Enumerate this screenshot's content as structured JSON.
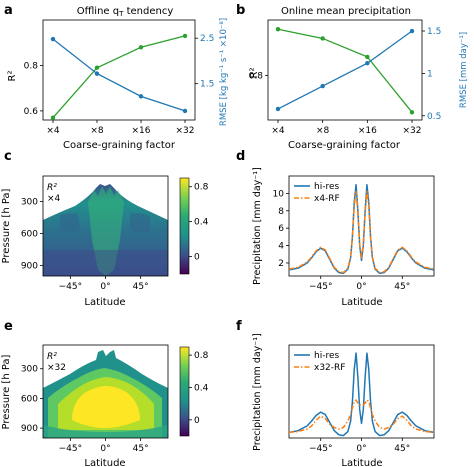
{
  "chart_data": [
    {
      "panel": "a",
      "type": "line",
      "title": "Offline qT tendency",
      "title_main": "Offline q",
      "title_sub": "T",
      "title_tail": " tendency",
      "xlabel": "Coarse-graining factor",
      "ylabel": "R²",
      "y2label": "RMSE [kg kg⁻¹ s⁻¹ ×10⁻⁸]",
      "categories": [
        "×4",
        "×8",
        "×16",
        "×32"
      ],
      "ylim": [
        0.56,
        1.0
      ],
      "yticks": [
        0.6,
        0.8
      ],
      "ytick_labels": [
        "0.6",
        "0.8"
      ],
      "y2lim": [
        0.7,
        2.9
      ],
      "y2ticks": [
        1.5,
        2.5
      ],
      "y2tick_labels": [
        "1.5",
        "2.5"
      ],
      "series": [
        {
          "axis": "left",
          "color": "#2ca02c",
          "values": [
            0.57,
            0.79,
            0.88,
            0.93
          ]
        },
        {
          "axis": "right",
          "color": "#1f77b4",
          "values": [
            2.48,
            1.72,
            1.22,
            0.9
          ]
        }
      ],
      "grid": false,
      "legend": "none"
    },
    {
      "panel": "b",
      "type": "line",
      "title": "Online mean precipitation",
      "xlabel": "Coarse-graining factor",
      "ylabel": "R²",
      "y2label": "RMSE [mm day⁻¹]",
      "categories": [
        "×4",
        "×8",
        "×16",
        "×32"
      ],
      "ylim": [
        0.655,
        0.98
      ],
      "yticks": [
        0.8
      ],
      "ytick_labels": [
        "0.8"
      ],
      "y2lim": [
        0.45,
        1.63
      ],
      "y2ticks": [
        0.5,
        1.0,
        1.5
      ],
      "y2tick_labels": [
        "0.5",
        "1",
        "1.5"
      ],
      "series": [
        {
          "axis": "left",
          "color": "#2ca02c",
          "values": [
            0.95,
            0.92,
            0.86,
            0.68
          ]
        },
        {
          "axis": "right",
          "color": "#1f77b4",
          "values": [
            0.58,
            0.85,
            1.12,
            1.5
          ]
        }
      ],
      "grid": false,
      "legend": "none"
    },
    {
      "panel": "c",
      "type": "heatmap",
      "annotation": "R²",
      "annotation2": "×4",
      "xlabel": "Latitude",
      "ylabel": "Pressure [h Pa]",
      "xlim": [
        -80,
        80
      ],
      "xticks": [
        -45,
        0,
        45
      ],
      "xtick_labels": [
        "−45°",
        "0°",
        "45°"
      ],
      "ylim": [
        1000,
        60
      ],
      "yticks": [
        300,
        600,
        900
      ],
      "ytick_labels": [
        "300",
        "600",
        "900"
      ],
      "colorbar": {
        "range": [
          -0.2,
          0.9
        ],
        "ticks": [
          0,
          0.4,
          0.8
        ],
        "tick_labels": [
          "0",
          "0.4",
          "0.8"
        ]
      },
      "description_values": "R² mostly 0.1–0.5 with noisy values near the tropics"
    },
    {
      "panel": "d",
      "type": "line",
      "xlabel": "Latitude",
      "ylabel": "Precipitation [mm day⁻¹]",
      "xlim": [
        -80,
        80
      ],
      "xticks": [
        -45,
        0,
        45
      ],
      "xtick_labels": [
        "−45°",
        "0°",
        "45°"
      ],
      "ylim": [
        0.5,
        12
      ],
      "yticks": [
        2,
        4,
        6,
        8,
        10
      ],
      "ytick_labels": [
        "2",
        "4",
        "6",
        "8",
        "10"
      ],
      "x": [
        -80,
        -70,
        -60,
        -55,
        -50,
        -45,
        -40,
        -35,
        -30,
        -25,
        -20,
        -15,
        -12,
        -10,
        -8,
        -6,
        -4,
        -2,
        0,
        2,
        4,
        6,
        8,
        10,
        12,
        15,
        20,
        25,
        30,
        35,
        40,
        45,
        50,
        55,
        60,
        70,
        80
      ],
      "series": [
        {
          "name": "hi-res",
          "color": "#1f77b4",
          "style": "solid",
          "values": [
            1.2,
            1.4,
            2.0,
            2.6,
            3.3,
            3.7,
            3.4,
            2.4,
            1.4,
            0.9,
            0.8,
            1.3,
            2.6,
            5.0,
            9.0,
            11.0,
            8.0,
            4.0,
            2.3,
            4.0,
            8.0,
            11.0,
            9.0,
            5.0,
            2.6,
            1.3,
            0.8,
            0.9,
            1.4,
            2.4,
            3.4,
            3.7,
            3.3,
            2.6,
            2.0,
            1.4,
            1.2
          ]
        },
        {
          "name": "x4-RF",
          "color": "#ff7f0e",
          "style": "dashdot",
          "values": [
            1.3,
            1.5,
            2.1,
            2.7,
            3.4,
            3.8,
            3.5,
            2.5,
            1.5,
            1.0,
            0.9,
            1.4,
            2.7,
            5.0,
            8.6,
            10.2,
            7.8,
            4.2,
            2.6,
            4.2,
            7.8,
            10.2,
            8.6,
            5.0,
            2.7,
            1.4,
            0.9,
            1.0,
            1.5,
            2.5,
            3.5,
            3.8,
            3.4,
            2.7,
            2.1,
            1.5,
            1.3
          ]
        }
      ],
      "legend": "top-left",
      "grid": false
    },
    {
      "panel": "e",
      "type": "heatmap",
      "annotation": "R²",
      "annotation2": "×32",
      "xlabel": "Latitude",
      "ylabel": "Pressure [h Pa]",
      "xlim": [
        -80,
        80
      ],
      "xticks": [
        -45,
        0,
        45
      ],
      "xtick_labels": [
        "−45°",
        "0°",
        "45°"
      ],
      "ylim": [
        1000,
        60
      ],
      "yticks": [
        300,
        600,
        900
      ],
      "ytick_labels": [
        "300",
        "600",
        "900"
      ],
      "colorbar": {
        "range": [
          -0.2,
          0.9
        ],
        "ticks": [
          0,
          0.4,
          0.8
        ],
        "tick_labels": [
          "0",
          "0.4",
          "0.8"
        ]
      },
      "description_values": "R² up to ~0.9 in tropical mid troposphere, decreasing toward edges"
    },
    {
      "panel": "f",
      "type": "line",
      "xlabel": "Latitude",
      "ylabel": "Precipitation [mm day⁻¹]",
      "xlim": [
        -80,
        80
      ],
      "xticks": [
        -45,
        0,
        45
      ],
      "xtick_labels": [
        "−45°",
        "0°",
        "45°"
      ],
      "ylim": [
        0.5,
        12
      ],
      "yticks": [],
      "ytick_labels": [],
      "x": [
        -80,
        -70,
        -60,
        -55,
        -50,
        -45,
        -40,
        -35,
        -30,
        -25,
        -20,
        -15,
        -12,
        -10,
        -8,
        -6,
        -4,
        -2,
        0,
        2,
        4,
        6,
        8,
        10,
        12,
        15,
        20,
        25,
        30,
        35,
        40,
        45,
        50,
        55,
        60,
        70,
        80
      ],
      "series": [
        {
          "name": "hi-res",
          "color": "#1f77b4",
          "style": "solid",
          "values": [
            1.2,
            1.4,
            2.0,
            2.6,
            3.3,
            3.7,
            3.4,
            2.4,
            1.4,
            0.9,
            0.8,
            1.3,
            2.6,
            5.0,
            9.0,
            11.0,
            8.0,
            4.0,
            2.3,
            4.0,
            8.0,
            11.0,
            9.0,
            5.0,
            2.6,
            1.3,
            0.8,
            0.9,
            1.4,
            2.4,
            3.4,
            3.7,
            3.3,
            2.6,
            2.0,
            1.4,
            1.2
          ]
        },
        {
          "name": "x32-RF",
          "color": "#ff7f0e",
          "style": "dashdot",
          "values": [
            1.2,
            1.3,
            1.6,
            2.0,
            2.7,
            3.2,
            2.9,
            2.2,
            1.8,
            1.6,
            1.8,
            2.6,
            3.4,
            4.2,
            5.0,
            5.2,
            4.8,
            4.6,
            4.6,
            4.6,
            4.8,
            5.2,
            5.0,
            4.2,
            3.4,
            2.6,
            1.8,
            1.6,
            1.8,
            2.2,
            2.9,
            3.2,
            2.7,
            2.0,
            1.6,
            1.3,
            1.2
          ]
        }
      ],
      "legend": "top-left",
      "grid": false
    }
  ],
  "panel_labels": [
    "a",
    "b",
    "c",
    "d",
    "e",
    "f"
  ],
  "colors": {
    "green": "#2ca02c",
    "blue": "#1f77b4",
    "orange": "#ff7f0e",
    "rmse_label": "#1f77b4"
  }
}
